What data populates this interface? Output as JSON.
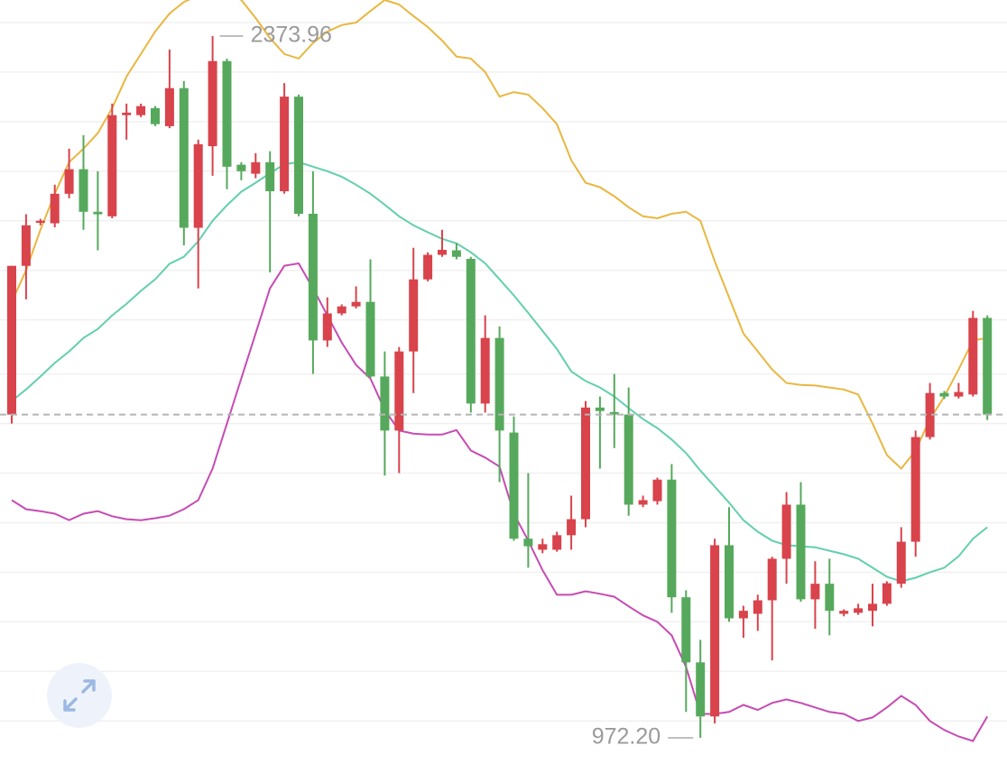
{
  "chart_data": {
    "type": "candlestick",
    "up_color": "#d9434b",
    "down_color": "#56a95c",
    "open": [
      1618,
      1915,
      2001,
      2000,
      2059,
      2108,
      2023,
      2014,
      2216,
      2216,
      2230,
      2194,
      2270,
      1991,
      2154,
      2324,
      2117,
      2099,
      2122,
      2064,
      2253,
      2019,
      1766,
      1820,
      1834,
      1843,
      1694,
      1586,
      1744,
      1888,
      1937,
      1946,
      1929,
      1640,
      1771,
      1582,
      1370,
      1348,
      1348,
      1377,
      1409,
      1632,
      1623,
      1618,
      1438,
      1445,
      1488,
      1253,
      1123,
      1015,
      1357,
      1211,
      1220,
      1247,
      1330,
      1438,
      1249,
      1280,
      1220,
      1222,
      1226,
      1240,
      1280,
      1364,
      1573,
      1661,
      1654,
      1658,
      1811
    ],
    "high": [
      1915,
      2018,
      2009,
      2077,
      2149,
      2176,
      2104,
      2239,
      2239,
      2239,
      2234,
      2347,
      2284,
      2167,
      2373.96,
      2329,
      2122,
      2140,
      2144,
      2280,
      2257,
      2104,
      1852,
      1838,
      1874,
      1928,
      1744,
      1753,
      1951,
      1942,
      1987,
      1960,
      1933,
      1816,
      1794,
      1614,
      1501,
      1370,
      1384,
      1456,
      1645,
      1654,
      1699,
      1672,
      1456,
      1492,
      1519,
      1267,
      1168,
      1370,
      1433,
      1236,
      1258,
      1334,
      1463,
      1483,
      1325,
      1330,
      1229,
      1240,
      1280,
      1285,
      1393,
      1586,
      1681,
      1665,
      1681,
      1825,
      1816
    ],
    "low": [
      1600,
      1848,
      1996,
      1992,
      2050,
      1987,
      1946,
      2010,
      2167,
      2212,
      2194,
      2190,
      1956,
      1870,
      2095,
      2068,
      2086,
      2090,
      1902,
      2059,
      2014,
      1699,
      1753,
      1816,
      1830,
      1690,
      1496,
      1501,
      1661,
      1884,
      1933,
      1928,
      1622,
      1622,
      1483,
      1366,
      1312,
      1341,
      1344,
      1348,
      1393,
      1510,
      1551,
      1416,
      1433,
      1438,
      1222,
      1024,
      972.2,
      1001,
      1204,
      1172,
      1186,
      1127,
      1280,
      1244,
      1190,
      1177,
      1215,
      1218,
      1195,
      1236,
      1272,
      1334,
      1568,
      1649,
      1650,
      1654,
      1607
    ],
    "close": [
      1915,
      1996,
      2005,
      2059,
      2108,
      2023,
      2018,
      2216,
      2221,
      2234,
      2198,
      2270,
      1991,
      2158,
      2324,
      2113,
      2104,
      2122,
      2064,
      2253,
      2019,
      1766,
      1820,
      1834,
      1843,
      1694,
      1586,
      1744,
      1888,
      1937,
      1947,
      1933,
      1640,
      1771,
      1586,
      1370,
      1355,
      1359,
      1377,
      1409,
      1632,
      1625,
      1618,
      1438,
      1447,
      1488,
      1253,
      1123,
      1015,
      1357,
      1211,
      1226,
      1247,
      1330,
      1438,
      1249,
      1280,
      1226,
      1226,
      1231,
      1240,
      1281,
      1364,
      1573,
      1661,
      1654,
      1663,
      1811,
      1618
    ],
    "bands": [
      {
        "color": "#e9b740",
        "values": [
          1843,
          1906,
          1987,
          2059,
          2122,
          2149,
          2180,
          2230,
          2293,
          2338,
          2383,
          2419,
          2442,
          2455,
          2464,
          2460,
          2446,
          2410,
          2370,
          2338,
          2329,
          2360,
          2383,
          2396,
          2401,
          2424,
          2446,
          2437,
          2414,
          2392,
          2365,
          2333,
          2329,
          2302,
          2253,
          2262,
          2257,
          2230,
          2198,
          2126,
          2081,
          2072,
          2054,
          2032,
          2014,
          2010,
          2019,
          2023,
          2005,
          1924,
          1852,
          1780,
          1744,
          1708,
          1681,
          1677,
          1676,
          1672,
          1668,
          1658,
          1600,
          1537,
          1510,
          1546,
          1609,
          1654,
          1708,
          1766,
          1771
        ]
      },
      {
        "color": "#62cfae",
        "values": [
          1645,
          1668,
          1694,
          1721,
          1744,
          1771,
          1789,
          1816,
          1839,
          1865,
          1888,
          1919,
          1933,
          1964,
          2005,
          2036,
          2063,
          2081,
          2100,
          2118,
          2122,
          2113,
          2104,
          2093,
          2077,
          2059,
          2037,
          2014,
          1996,
          1982,
          1969,
          1960,
          1942,
          1920,
          1888,
          1856,
          1821,
          1785,
          1749,
          1704,
          1685,
          1672,
          1654,
          1631,
          1609,
          1591,
          1568,
          1541,
          1506,
          1474,
          1442,
          1407,
          1384,
          1366,
          1357,
          1355,
          1353,
          1346,
          1339,
          1330,
          1312,
          1294,
          1285,
          1292,
          1303,
          1312,
          1335,
          1370,
          1393
        ]
      },
      {
        "color": "#c74bb3",
        "values": [
          1447,
          1429,
          1425,
          1420,
          1407,
          1420,
          1425,
          1415,
          1409,
          1407,
          1411,
          1416,
          1429,
          1447,
          1510,
          1600,
          1690,
          1780,
          1870,
          1915,
          1920,
          1870,
          1816,
          1762,
          1717,
          1690,
          1627,
          1586,
          1580,
          1578,
          1578,
          1587,
          1546,
          1532,
          1514,
          1420,
          1366,
          1307,
          1258,
          1258,
          1265,
          1260,
          1254,
          1235,
          1217,
          1204,
          1177,
          1114,
          1020,
          1020,
          1024,
          1038,
          1028,
          1042,
          1049,
          1042,
          1033,
          1024,
          1020,
          1006,
          1013,
          1033,
          1056,
          1038,
          1006,
          988,
          975,
          966,
          1015
        ]
      }
    ],
    "ylim": [
      920,
      2446
    ],
    "gridlines": [
      2401,
      2302,
      2203,
      2104,
      2005,
      1906,
      1807,
      1699,
      1600,
      1501,
      1402,
      1303,
      1204,
      1105,
      1006
    ],
    "last_price_line": true,
    "annotations": [
      {
        "text": "2373.96"
      },
      {
        "text": "972.20"
      }
    ]
  }
}
